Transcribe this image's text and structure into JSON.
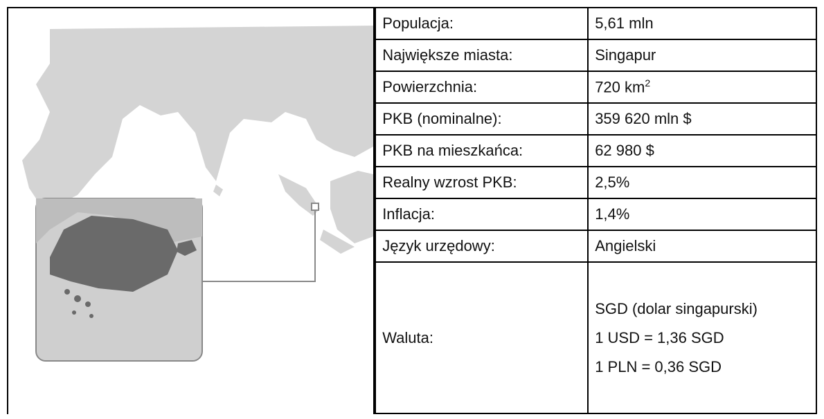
{
  "table": {
    "rows": [
      {
        "label": "Populacja:",
        "value": "5,61 mln"
      },
      {
        "label": "Największe miasta:",
        "value": "Singapur"
      },
      {
        "label": "Powierzchnia:",
        "value": "720 km",
        "sup": "2"
      },
      {
        "label": "PKB (nominalne):",
        "value": "359 620 mln $"
      },
      {
        "label": "PKB na mieszkańca:",
        "value": "62 980 $"
      },
      {
        "label": "Realny wzrost PKB:",
        "value": "2,5%"
      },
      {
        "label": "Inflacja:",
        "value": "1,4%"
      },
      {
        "label": "Język urzędowy:",
        "value": "Angielski"
      },
      {
        "label": "Waluta:",
        "lines": [
          "SGD (dolar singapurski)",
          "1 USD = 1,36 SGD",
          "1 PLN = 0,36 SGD"
        ]
      }
    ]
  }
}
